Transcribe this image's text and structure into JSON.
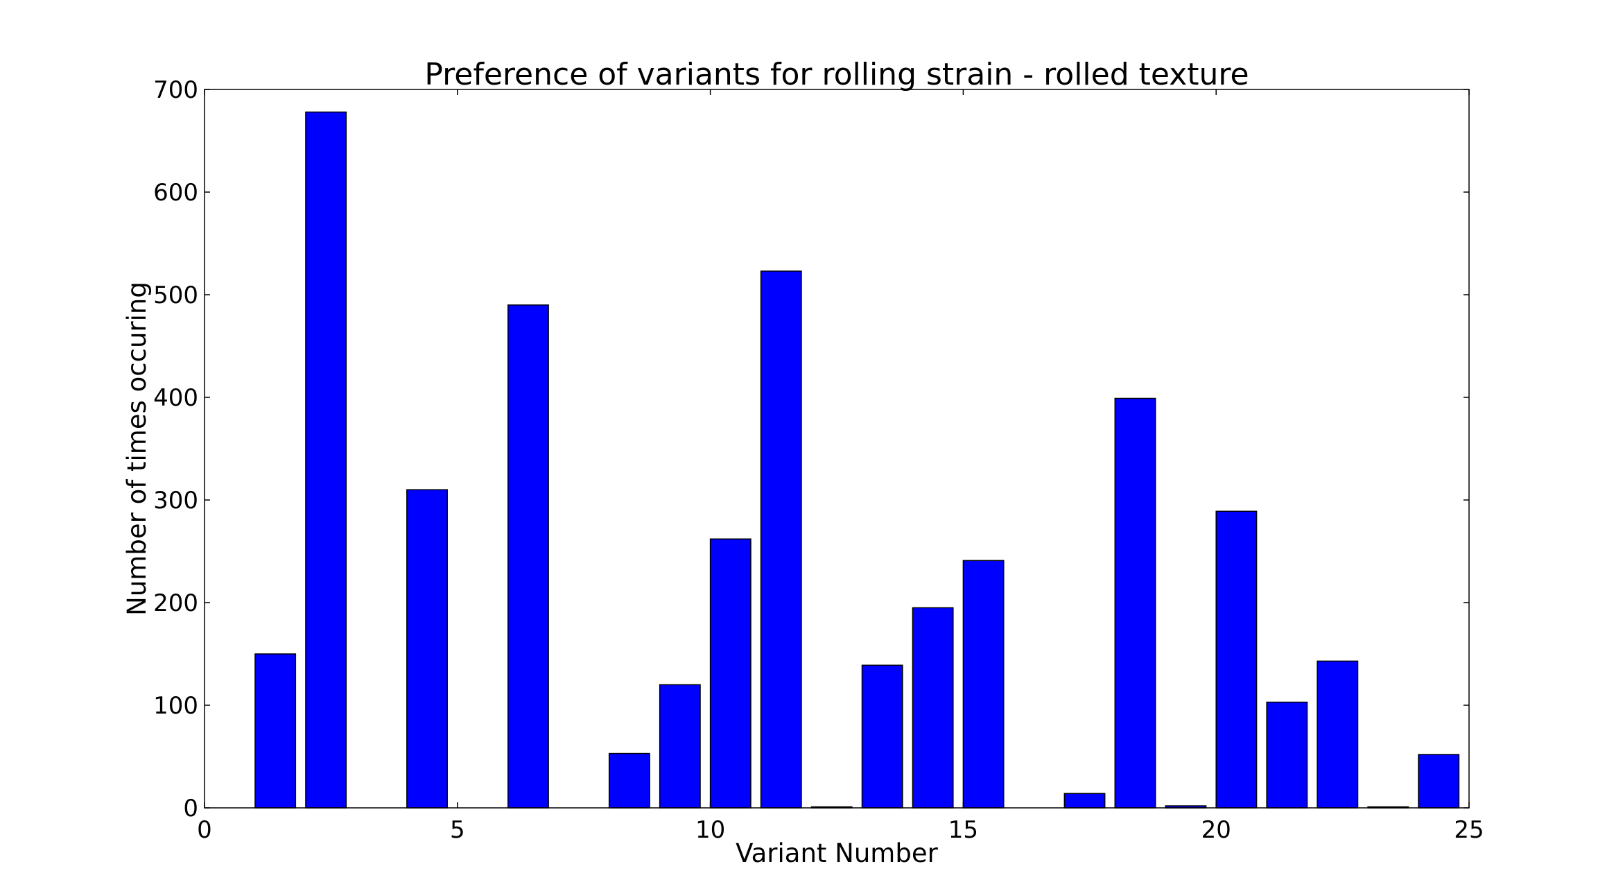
{
  "chart_data": {
    "type": "bar",
    "title": "Preference of variants for rolling strain - rolled texture",
    "xlabel": "Variant Number",
    "ylabel": "Number of times occuring",
    "xlim": [
      0,
      25
    ],
    "ylim": [
      0,
      700
    ],
    "xticks": [
      0,
      5,
      10,
      15,
      20,
      25
    ],
    "yticks": [
      0,
      100,
      200,
      300,
      400,
      500,
      600,
      700
    ],
    "bar_width": 0.8,
    "bar_align": "left-edge",
    "grid": false,
    "legend": "none",
    "x": [
      1,
      2,
      3,
      4,
      5,
      6,
      7,
      8,
      9,
      10,
      11,
      12,
      13,
      14,
      15,
      16,
      17,
      18,
      19,
      20,
      21,
      22,
      23,
      24
    ],
    "values": [
      150,
      678,
      0,
      310,
      0,
      490,
      0,
      53,
      120,
      262,
      523,
      1,
      139,
      195,
      241,
      0,
      14,
      399,
      2,
      289,
      103,
      143,
      1,
      52
    ],
    "colors": {
      "bar_fill": "#0000ff",
      "bar_edge": "#000000",
      "axes": "#000000",
      "background": "#ffffff"
    }
  }
}
